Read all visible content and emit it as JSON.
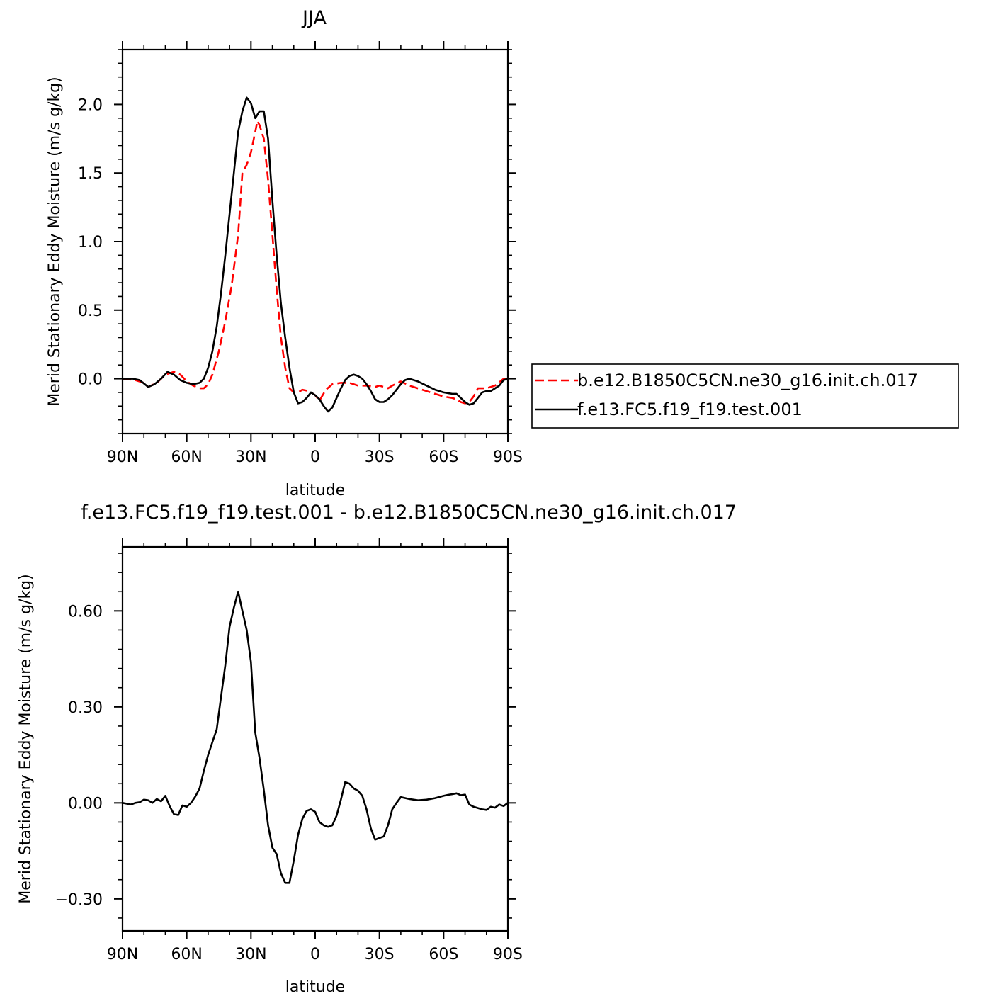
{
  "chart_data": [
    {
      "type": "line",
      "title": "JJA",
      "xlabel": "latitude",
      "ylabel": "Merid Stationary Eddy Moisture (m/s g/kg)",
      "xlim": [
        90,
        -90
      ],
      "ylim": [
        -0.4,
        2.4
      ],
      "x_ticks": [
        90,
        60,
        30,
        0,
        -30,
        -60,
        -90
      ],
      "x_tick_labels": [
        "90N",
        "60N",
        "30N",
        "0",
        "30S",
        "60S",
        "90S"
      ],
      "y_ticks": [
        0.0,
        0.5,
        1.0,
        1.5,
        2.0
      ],
      "y_tick_labels": [
        "0.0",
        "0.5",
        "1.0",
        "1.5",
        "2.0"
      ],
      "legend": "right",
      "series": [
        {
          "name": "b.e12.B1850C5CN.ne30_g16.init.ch.017",
          "color": "#ff0000",
          "dash": "dashed",
          "x": [
            90,
            84,
            80,
            78,
            74,
            70,
            66,
            63,
            60,
            57,
            54,
            52,
            50,
            48,
            45,
            42,
            39,
            36,
            34,
            32,
            30,
            28,
            27,
            26,
            24,
            22,
            20,
            18,
            16,
            14,
            12,
            10,
            8,
            6,
            3,
            0,
            -2,
            -5,
            -8,
            -12,
            -16,
            -20,
            -24,
            -28,
            -30,
            -32,
            -34,
            -36,
            -40,
            -44,
            -50,
            -56,
            -60,
            -64,
            -66,
            -68,
            -70,
            -72,
            -74,
            -76,
            -80,
            -84,
            -88,
            -90
          ],
          "y": [
            0.0,
            -0.01,
            -0.03,
            -0.06,
            -0.03,
            0.03,
            0.05,
            0.03,
            -0.02,
            -0.05,
            -0.07,
            -0.07,
            -0.04,
            0.03,
            0.2,
            0.42,
            0.68,
            1.05,
            1.5,
            1.56,
            1.65,
            1.8,
            1.88,
            1.85,
            1.75,
            1.45,
            1.05,
            0.65,
            0.3,
            0.08,
            -0.07,
            -0.1,
            -0.1,
            -0.08,
            -0.09,
            -0.12,
            -0.16,
            -0.08,
            -0.04,
            -0.03,
            -0.03,
            -0.05,
            -0.05,
            -0.06,
            -0.05,
            -0.06,
            -0.07,
            -0.05,
            -0.02,
            -0.05,
            -0.08,
            -0.11,
            -0.13,
            -0.14,
            -0.15,
            -0.17,
            -0.18,
            -0.17,
            -0.13,
            -0.07,
            -0.07,
            -0.05,
            0.0,
            0.0
          ]
        },
        {
          "name": "f.e13.FC5.f19_f19.test.001",
          "color": "#000000",
          "dash": "solid",
          "x": [
            90,
            85,
            82,
            78,
            75,
            72,
            69,
            66,
            63,
            60,
            57,
            54,
            52,
            50,
            48,
            46,
            44,
            42,
            40,
            38,
            36,
            34,
            32,
            30,
            28,
            26,
            24,
            22,
            20,
            18,
            16,
            14,
            12,
            10,
            8,
            6,
            4,
            2,
            0,
            -2,
            -4,
            -6,
            -8,
            -10,
            -12,
            -14,
            -16,
            -18,
            -20,
            -22,
            -24,
            -26,
            -28,
            -30,
            -32,
            -34,
            -36,
            -38,
            -40,
            -42,
            -44,
            -48,
            -52,
            -56,
            -60,
            -64,
            -66,
            -68,
            -70,
            -72,
            -74,
            -76,
            -78,
            -80,
            -82,
            -84,
            -86,
            -88,
            -90
          ],
          "y": [
            0.0,
            0.0,
            -0.01,
            -0.06,
            -0.04,
            0.0,
            0.05,
            0.03,
            -0.01,
            -0.03,
            -0.04,
            -0.03,
            0.0,
            0.08,
            0.2,
            0.38,
            0.62,
            0.9,
            1.2,
            1.5,
            1.8,
            1.95,
            2.05,
            2.01,
            1.9,
            1.95,
            1.95,
            1.75,
            1.3,
            0.9,
            0.55,
            0.3,
            0.08,
            -0.1,
            -0.18,
            -0.17,
            -0.14,
            -0.1,
            -0.12,
            -0.15,
            -0.2,
            -0.24,
            -0.21,
            -0.14,
            -0.07,
            -0.01,
            0.02,
            0.03,
            0.02,
            0.0,
            -0.04,
            -0.09,
            -0.15,
            -0.17,
            -0.17,
            -0.15,
            -0.12,
            -0.08,
            -0.04,
            -0.01,
            0.0,
            -0.02,
            -0.05,
            -0.08,
            -0.1,
            -0.11,
            -0.11,
            -0.14,
            -0.17,
            -0.19,
            -0.18,
            -0.14,
            -0.1,
            -0.09,
            -0.09,
            -0.07,
            -0.05,
            -0.01,
            0.0
          ]
        }
      ]
    },
    {
      "type": "line",
      "title": "f.e13.FC5.f19_f19.test.001 - b.e12.B1850C5CN.ne30_g16.init.ch.017",
      "xlabel": "latitude",
      "ylabel": "Merid Stationary Eddy Moisture (m/s g/kg)",
      "xlim": [
        90,
        -90
      ],
      "ylim": [
        -0.4,
        0.8
      ],
      "x_ticks": [
        90,
        60,
        30,
        0,
        -30,
        -60,
        -90
      ],
      "x_tick_labels": [
        "90N",
        "60N",
        "30N",
        "0",
        "30S",
        "60S",
        "90S"
      ],
      "y_ticks": [
        -0.3,
        0.0,
        0.3,
        0.6
      ],
      "y_tick_labels": [
        "−0.30",
        "0.00",
        "0.30",
        "0.60"
      ],
      "series": [
        {
          "color": "#000000",
          "dash": "solid",
          "x": [
            90,
            86,
            84,
            82,
            80,
            78,
            76,
            74,
            72,
            70,
            68,
            66,
            64,
            62,
            60,
            58,
            56,
            54,
            52,
            50,
            48,
            46,
            44,
            42,
            40,
            38,
            36,
            34,
            32,
            30,
            28,
            26,
            24,
            22,
            20,
            18,
            16,
            14,
            12,
            10,
            8,
            6,
            4,
            2,
            0,
            -2,
            -4,
            -6,
            -8,
            -10,
            -12,
            -14,
            -16,
            -18,
            -20,
            -22,
            -24,
            -26,
            -28,
            -30,
            -32,
            -34,
            -36,
            -38,
            -40,
            -44,
            -48,
            -52,
            -56,
            -60,
            -62,
            -64,
            -66,
            -68,
            -70,
            -72,
            -74,
            -76,
            -78,
            -80,
            -82,
            -84,
            -86,
            -88,
            -90
          ],
          "y": [
            0.0,
            -0.005,
            0.0,
            0.002,
            0.01,
            0.008,
            0.0,
            0.012,
            0.005,
            0.022,
            -0.01,
            -0.035,
            -0.038,
            -0.008,
            -0.012,
            0.0,
            0.02,
            0.045,
            0.1,
            0.15,
            0.19,
            0.23,
            0.33,
            0.43,
            0.55,
            0.61,
            0.66,
            0.6,
            0.54,
            0.44,
            0.22,
            0.14,
            0.04,
            -0.07,
            -0.14,
            -0.16,
            -0.22,
            -0.25,
            -0.25,
            -0.18,
            -0.1,
            -0.05,
            -0.025,
            -0.02,
            -0.028,
            -0.06,
            -0.07,
            -0.075,
            -0.07,
            -0.04,
            0.01,
            0.065,
            0.06,
            0.045,
            0.038,
            0.022,
            -0.02,
            -0.08,
            -0.115,
            -0.11,
            -0.105,
            -0.07,
            -0.02,
            0.0,
            0.018,
            0.012,
            0.008,
            0.01,
            0.015,
            0.022,
            0.025,
            0.027,
            0.03,
            0.024,
            0.026,
            -0.005,
            -0.012,
            -0.016,
            -0.02,
            -0.022,
            -0.012,
            -0.015,
            -0.005,
            -0.01,
            0.0
          ]
        }
      ]
    }
  ]
}
